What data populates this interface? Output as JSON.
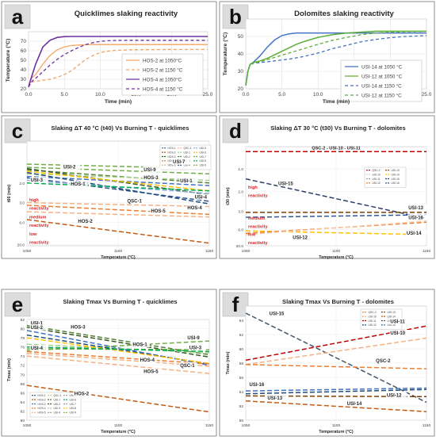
{
  "chart_data": [
    {
      "panel_letter": "a",
      "type": "line",
      "title": "Quicklimes slaking reactivity",
      "xlabel": "Time (min)",
      "ylabel": "Temperature (°C)",
      "xlim": [
        0,
        25
      ],
      "ylim": [
        20,
        80
      ],
      "xticks": [
        "0.0",
        "5.0",
        "10.0",
        "15.0",
        "20.0",
        "25.0"
      ],
      "yticks": [
        "20",
        "30",
        "40",
        "50",
        "60",
        "70"
      ],
      "grid": true,
      "legend_position": "inside-right",
      "series": [
        {
          "name": "HOS-2 at 1050°C",
          "color": "#F4A460",
          "dash": "solid",
          "width": 1.3,
          "x": [
            0,
            0.4,
            1,
            2,
            3,
            4,
            5,
            6,
            7,
            8,
            10,
            12,
            15,
            20,
            25
          ],
          "y": [
            22,
            31,
            35,
            46,
            55,
            61,
            64,
            65.5,
            66,
            66.3,
            66.5,
            66.5,
            66.5,
            66.5,
            66.5
          ]
        },
        {
          "name": "HOS-2 at 1150 °C",
          "color": "#F4A460",
          "dash": "4,3",
          "width": 1.3,
          "x": [
            0,
            0.4,
            1,
            2,
            3,
            4,
            5,
            6,
            7,
            8,
            9,
            10,
            11,
            12,
            14,
            16,
            20,
            25
          ],
          "y": [
            22,
            27,
            28,
            29,
            30,
            32,
            35,
            39,
            45,
            51,
            55,
            58,
            59.5,
            60.3,
            61,
            61.2,
            61.3,
            61.3
          ]
        },
        {
          "name": "HOS-4 at 1050°C",
          "color": "#7030A0",
          "dash": "solid",
          "width": 1.6,
          "x": [
            0,
            0.4,
            1,
            2,
            3,
            4,
            5,
            6,
            7,
            25
          ],
          "y": [
            22,
            32,
            46,
            64,
            71,
            74,
            74.8,
            75,
            75,
            75
          ]
        },
        {
          "name": "HOS-4 at 1150 °C",
          "color": "#7030A0",
          "dash": "4,3",
          "width": 1.3,
          "x": [
            0,
            0.5,
            1,
            2,
            3,
            4,
            5,
            6,
            7,
            8,
            9,
            10,
            11,
            12,
            14,
            16,
            20,
            25
          ],
          "y": [
            22,
            28,
            31,
            38,
            45,
            51,
            56,
            60,
            63.5,
            66.5,
            68.5,
            69.8,
            70.5,
            70.8,
            71,
            71,
            71,
            71
          ]
        }
      ]
    },
    {
      "panel_letter": "b",
      "type": "line",
      "title": "Dolomites slaking reactivity",
      "xlabel": "Time (min)",
      "ylabel": "Temperature (°C)",
      "xlim": [
        0,
        25
      ],
      "ylim": [
        20,
        60
      ],
      "xticks": [
        "0.0",
        "5.0",
        "10.0",
        "15.0",
        "20.0",
        "25.0"
      ],
      "yticks": [
        "20",
        "30",
        "40",
        "50"
      ],
      "grid": true,
      "legend_position": "bottom-right",
      "series": [
        {
          "name": "USI-14 at 1050 °C",
          "color": "#4472C4",
          "dash": "solid",
          "width": 1.5,
          "x": [
            0,
            0.3,
            0.6,
            1,
            2,
            3,
            4,
            5,
            6,
            7,
            8,
            25
          ],
          "y": [
            22,
            30,
            34,
            35,
            39,
            44,
            48,
            50.5,
            51.5,
            52,
            52,
            52
          ]
        },
        {
          "name": "USI-12 at 1050 °C",
          "color": "#5DAF3A",
          "dash": "solid",
          "width": 1.5,
          "x": [
            0,
            0.3,
            0.6,
            1,
            2,
            3,
            4,
            5,
            6,
            7,
            8,
            10,
            12,
            14,
            16,
            18,
            20,
            25
          ],
          "y": [
            22,
            30,
            34,
            35,
            36,
            37.5,
            39.5,
            41.5,
            43.5,
            45.5,
            47,
            49.5,
            51,
            52,
            52.5,
            53,
            53,
            53
          ]
        },
        {
          "name": "USI-14 at 1150 °C",
          "color": "#4472C4",
          "dash": "4,3",
          "width": 1.3,
          "x": [
            0,
            0.3,
            0.6,
            1,
            2,
            4,
            6,
            8,
            10,
            12,
            14,
            16,
            18,
            20,
            22,
            25
          ],
          "y": [
            22,
            30,
            34,
            34.5,
            35,
            36,
            37,
            38.5,
            40.5,
            43,
            45,
            47,
            48.3,
            49.3,
            50,
            50.5
          ]
        },
        {
          "name": "USI-12 at 1150 °C",
          "color": "#5DAF3A",
          "dash": "4,3",
          "width": 1.3,
          "x": [
            0,
            0.3,
            0.6,
            1,
            2,
            4,
            6,
            8,
            10,
            12,
            14,
            16,
            18,
            20,
            25
          ],
          "y": [
            22,
            30,
            34,
            34.5,
            35.5,
            38,
            40.5,
            43,
            45.5,
            47.8,
            49.5,
            51,
            52,
            52.5,
            53
          ]
        }
      ]
    },
    {
      "panel_letter": "c",
      "type": "line",
      "title": "Slaking ΔT 40 °C (t40) Vs Burning T - quicklimes",
      "xlabel": "Temperature (°C)",
      "ylabel": "t60 (min)",
      "x": [
        1050,
        1150
      ],
      "xticks": [
        "1050",
        "1100",
        "1150"
      ],
      "yticks": [
        "2.0",
        "3.0",
        "6.0",
        "20.0"
      ],
      "reactivity_labels": [
        "high reactivity",
        "medium reactivity",
        "low reactivity"
      ],
      "legend_entries": [
        "HOS-1",
        "HOS-2",
        "HOS-3",
        "HOS-4",
        "HOS-5",
        "QSC-1",
        "USI-1",
        "USI-2",
        "USI-3",
        "USI-4",
        "USI-5",
        "USI-6",
        "USI-7",
        "USI-8",
        "USI-9"
      ],
      "series_labels": [
        "USI-7",
        "USI-2",
        "USI-9",
        "USI-3",
        "HOS-3",
        "USI-1",
        "HOS-1",
        "USI-4",
        "QSC-1",
        "HOS-5",
        "HOS-4",
        "HOS-2"
      ],
      "series": [
        {
          "name": "USI-7",
          "color": "#70AD47",
          "y": [
            0.88,
            1.05
          ]
        },
        {
          "name": "USI-9",
          "color": "#70AD47",
          "y": [
            1.0,
            1.25
          ]
        },
        {
          "name": "USI-2",
          "color": "#548235",
          "y": [
            1.1,
            1.6
          ]
        },
        {
          "name": "HOS-3",
          "color": "#375623",
          "y": [
            1.05,
            2.05
          ]
        },
        {
          "name": "USI-3",
          "color": "#4472C4",
          "y": [
            1.35,
            1.7
          ]
        },
        {
          "name": "USI-1",
          "color": "#A9D18E",
          "y": [
            1.25,
            1.5
          ]
        },
        {
          "name": "HOS-1",
          "color": "#2F5597",
          "y": [
            1.4,
            2.3
          ]
        },
        {
          "name": "USI-4",
          "color": "#1F4E79",
          "y": [
            1.2,
            2.4
          ]
        },
        {
          "name": "USI-5",
          "color": "#8FAADC",
          "y": [
            1.5,
            2.0
          ]
        },
        {
          "name": "USI-6",
          "color": "#FFC000",
          "y": [
            1.15,
            1.9
          ]
        },
        {
          "name": "USI-8",
          "color": "#00B050",
          "y": [
            1.6,
            1.9
          ]
        },
        {
          "name": "QSC-1",
          "color": "#F4B183",
          "y": [
            2.35,
            2.5
          ]
        },
        {
          "name": "HOS-5",
          "color": "#F4B183",
          "y": [
            2.7,
            2.9
          ]
        },
        {
          "name": "HOS-4",
          "color": "#ED7D31",
          "y": [
            2.45,
            2.8
          ]
        },
        {
          "name": "HOS-2",
          "color": "#C55A11",
          "y": [
            3.0,
            3.9
          ]
        }
      ]
    },
    {
      "panel_letter": "d",
      "type": "line",
      "title": "Slaking ΔT 30 °C (t30) Vs Burning T - dolomites",
      "xlabel": "Temperature (°C)",
      "ylabel": "t30 (min)",
      "x": [
        1050,
        1150
      ],
      "xticks": [
        "1050",
        "1100",
        "1150"
      ],
      "yticks": [
        "1.0",
        "2.0",
        "3.0",
        "6.0",
        "20.0"
      ],
      "reactivity_labels": [
        "high reactivity",
        "medium reactivity",
        "low reactivity"
      ],
      "top_label": "QSC-2 - USI-10 - USI-11",
      "legend_entries": [
        "QSC-2",
        "USI-10",
        "USI-11",
        "USI-12",
        "USI-13",
        "USI-14",
        "USI-15",
        "USI-16"
      ],
      "series_labels": [
        "USI-15",
        "USI-13",
        "USI-16",
        "USI-14",
        "USI-12"
      ],
      "series": [
        {
          "name": "QSC-2",
          "color": "#C00000",
          "y": [
            0.2,
            0.2
          ]
        },
        {
          "name": "USI-15",
          "color": "#2F3E6B",
          "y": [
            1.3,
            2.9
          ]
        },
        {
          "name": "USI-13",
          "color": "#7F3F00",
          "y": [
            2.65,
            2.65
          ]
        },
        {
          "name": "USI-16",
          "color": "#2F5597",
          "y": [
            2.85,
            2.75
          ]
        },
        {
          "name": "USI-14",
          "color": "#FFC000",
          "y": [
            3.4,
            3.55
          ]
        },
        {
          "name": "USI-12",
          "color": "#ED7D31",
          "y": [
            3.5,
            3.05
          ]
        },
        {
          "name": "USI-10",
          "color": "#F8CBAD",
          "y": [
            3.55,
            3.0
          ]
        }
      ]
    },
    {
      "panel_letter": "e",
      "type": "line",
      "title": "Slaking Tmax Vs Burning T - quicklimes",
      "xlabel": "Temperature (°C)",
      "ylabel": "Tmax (min)",
      "x": [
        1050,
        1150
      ],
      "xlim": [
        1050,
        1150
      ],
      "ylim": [
        60,
        82
      ],
      "xticks": [
        "1050",
        "1100",
        "1150"
      ],
      "yticks": [
        "60",
        "62",
        "64",
        "66",
        "68",
        "70",
        "72",
        "74",
        "76",
        "78",
        "80",
        "82"
      ],
      "legend_entries": [
        "HOS-1",
        "HOS-2",
        "HOS-3",
        "HOS-4",
        "HOS-5",
        "QSC-1",
        "USI-1",
        "USI-2",
        "USI-3",
        "USI-4",
        "USI-5",
        "USI-6",
        "USI-7",
        "USI-8",
        "USI-9"
      ],
      "series_labels": [
        "USI-1",
        "USI-2",
        "HOS-3",
        "USI-9",
        "USI-3",
        "USI-4",
        "HOS-1",
        "HOS-4",
        "QSC-1",
        "HOS-5",
        "HOS-2"
      ],
      "series": [
        {
          "name": "USI-1",
          "color": "#548235",
          "y": [
            80.7,
            74.3
          ]
        },
        {
          "name": "USI-2",
          "color": "#375623",
          "y": [
            80.3,
            73.8
          ]
        },
        {
          "name": "HOS-3",
          "color": "#4472C4",
          "y": [
            79.6,
            72.0
          ]
        },
        {
          "name": "USI-9",
          "color": "#70AD47",
          "y": [
            75.2,
            77.3
          ]
        },
        {
          "name": "USI-3",
          "color": "#A9D18E",
          "y": [
            76.6,
            74.7
          ]
        },
        {
          "name": "USI-4",
          "color": "#70AD47",
          "y": [
            75.6,
            75.4
          ]
        },
        {
          "name": "HOS-1",
          "color": "#1F4E79",
          "y": [
            78.6,
            72.3
          ]
        },
        {
          "name": "USI-8",
          "color": "#FFC000",
          "y": [
            78.0,
            72.4
          ]
        },
        {
          "name": "USI-6",
          "color": "#00B050",
          "y": [
            76.0,
            75.0
          ]
        },
        {
          "name": "HOS-4",
          "color": "#ED7D31",
          "y": [
            75.0,
            72.3
          ]
        },
        {
          "name": "QSC-1",
          "color": "#F4B183",
          "y": [
            74.6,
            71.8
          ]
        },
        {
          "name": "HOS-5",
          "color": "#F4B183",
          "y": [
            74.0,
            70.2
          ]
        },
        {
          "name": "HOS-2",
          "color": "#C55A11",
          "y": [
            67.6,
            61.8
          ]
        }
      ]
    },
    {
      "panel_letter": "f",
      "type": "line",
      "title": "Slaking Tmax Vs Burning T - dolomites",
      "xlabel": "Temperature (°C)",
      "ylabel": "Tmax (min)",
      "x": [
        1050,
        1150
      ],
      "xlim": [
        1050,
        1150
      ],
      "ylim": [
        50,
        66
      ],
      "xticks": [
        "1050",
        "1100",
        "1150"
      ],
      "yticks": [
        "50",
        "52",
        "54",
        "56",
        "58",
        "60",
        "62",
        "64"
      ],
      "legend_entries": [
        "QSC-2",
        "USI-10",
        "USI-11",
        "USI-12",
        "USI-13",
        "USI-14",
        "USI-15",
        "USI-16"
      ],
      "series_labels": [
        "USI-15",
        "USI-11",
        "USI-10",
        "QSC-2",
        "USI-16",
        "USI-12",
        "USI-13",
        "USI-14"
      ],
      "series": [
        {
          "name": "USI-15",
          "color": "#44546A",
          "y": [
            65.0,
            52.5
          ]
        },
        {
          "name": "USI-11",
          "color": "#C00000",
          "y": [
            58.4,
            63.2
          ]
        },
        {
          "name": "USI-10",
          "color": "#F4B183",
          "y": [
            57.8,
            61.5
          ]
        },
        {
          "name": "QSC-2",
          "color": "#ED7D31",
          "y": [
            57.8,
            57.2
          ]
        },
        {
          "name": "USI-16",
          "color": "#4472C4",
          "y": [
            54.1,
            54.5
          ]
        },
        {
          "name": "USI-12",
          "color": "#1F4E79",
          "y": [
            53.7,
            54.3
          ]
        },
        {
          "name": "USI-13",
          "color": "#7F3F00",
          "y": [
            53.4,
            53.3
          ]
        },
        {
          "name": "USI-14",
          "color": "#C55A11",
          "y": [
            52.7,
            51.2
          ]
        }
      ]
    }
  ]
}
